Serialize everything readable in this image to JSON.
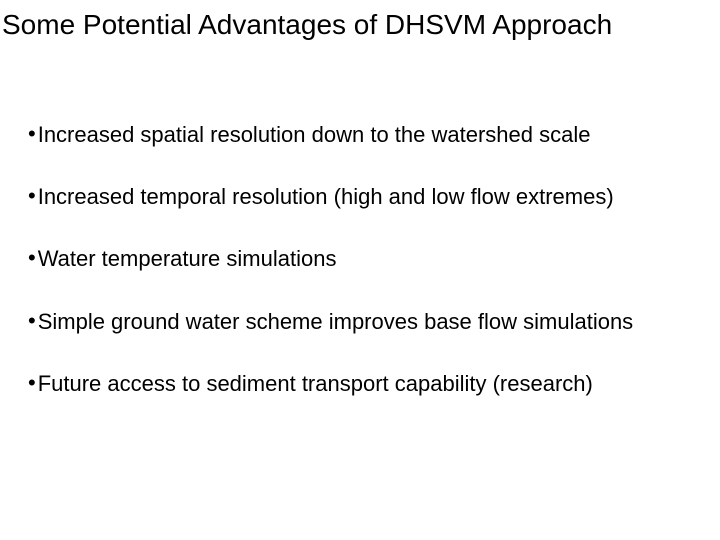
{
  "title": "Some Potential Advantages of DHSVM Approach",
  "title_fontsize": 28,
  "title_color": "#000000",
  "bullet_fontsize": 22,
  "bullet_color": "#000000",
  "background_color": "#ffffff",
  "bullet_marker": "•",
  "bullets": [
    "Increased spatial resolution down to the watershed scale",
    "Increased temporal resolution (high and low flow extremes)",
    "Water temperature simulations",
    "Simple ground water scheme improves base flow simulations",
    "Future access to sediment transport capability (research)"
  ]
}
